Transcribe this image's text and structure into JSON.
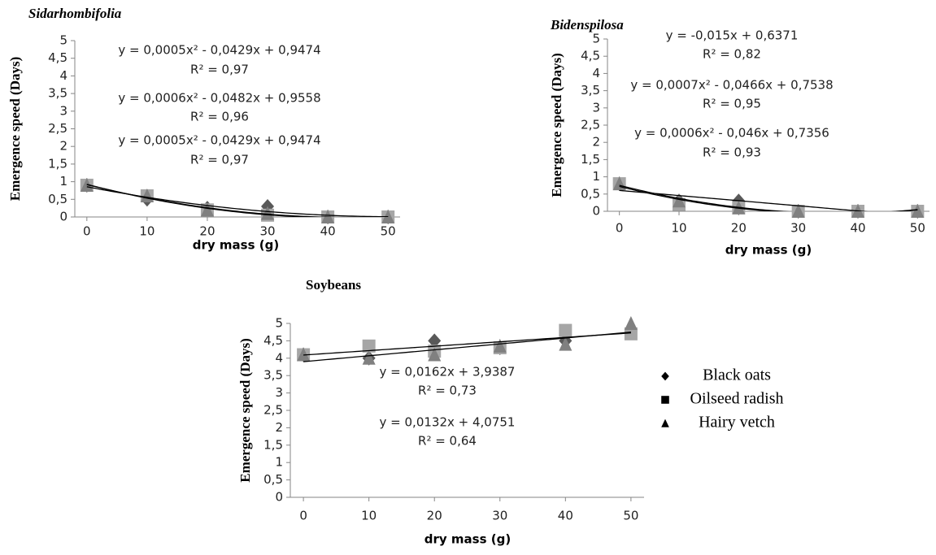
{
  "chart_data": [
    {
      "type": "scatter",
      "title": "Sidarhombifolia",
      "ylabel": "Emergence speed (Days)",
      "xlabel": "dry  mass (g)",
      "x": [
        0,
        10,
        20,
        30,
        40,
        50
      ],
      "series": [
        {
          "marker": "diamond",
          "color": "#595959",
          "trendline": "quadratic",
          "values": [
            0.9,
            0.5,
            0.25,
            0.3,
            0,
            0
          ]
        },
        {
          "marker": "square",
          "color": "#a6a6a6",
          "trendline": "quadratic",
          "values": [
            0.9,
            0.6,
            0.2,
            0.05,
            0,
            0
          ]
        },
        {
          "marker": "triangle",
          "color": "#808080",
          "trendline": "quadratic",
          "values": [
            0.9,
            0.6,
            0.2,
            0.1,
            0,
            0
          ]
        }
      ],
      "xlim": [
        -2,
        52
      ],
      "xticks": [
        0,
        10,
        20,
        30,
        40,
        50
      ],
      "ylim": [
        0,
        5
      ],
      "yticks": [
        0,
        {
          "value": 0.5,
          "label": "0,5"
        },
        1,
        {
          "value": 1.5,
          "label": "1,5"
        },
        2,
        {
          "value": 2.5,
          "label": "2,5"
        },
        3,
        {
          "value": 3.5,
          "label": "3,5"
        },
        4,
        {
          "value": 4.5,
          "label": "4,5"
        },
        5
      ],
      "annotations": [
        "y = 0,0005x² - 0,0429x + 0,9474",
        "R² = 0,97",
        "y = 0,0006x² - 0,0482x + 0,9558",
        "R² = 0,96",
        "y = 0,0005x² - 0,0429x + 0,9474",
        "R² = 0,97"
      ]
    },
    {
      "type": "scatter",
      "title": "Bidenspilosa",
      "ylabel": "Emergence speed (Days)",
      "xlabel": "dry mass (g)",
      "x": [
        0,
        10,
        20,
        30,
        40,
        50
      ],
      "series": [
        {
          "marker": "diamond",
          "color": "#595959",
          "trendline": "linear",
          "values": [
            0.8,
            0.3,
            0.3,
            0,
            0,
            0
          ]
        },
        {
          "marker": "square",
          "color": "#a6a6a6",
          "trendline": "quadratic",
          "values": [
            0.8,
            0.2,
            0.1,
            0,
            0,
            0
          ]
        },
        {
          "marker": "triangle",
          "color": "#808080",
          "trendline": "quadratic",
          "values": [
            0.8,
            0.3,
            0.1,
            0,
            0,
            0
          ]
        }
      ],
      "xlim": [
        -2,
        52
      ],
      "xticks": [
        0,
        10,
        20,
        30,
        40,
        50
      ],
      "ylim": [
        0,
        5
      ],
      "yticks": [
        0,
        {
          "value": 0.5,
          "label": "0,5"
        },
        1,
        {
          "value": 1.5,
          "label": "1,5"
        },
        2,
        {
          "value": 2.5,
          "label": "2,5"
        },
        3,
        {
          "value": 3.5,
          "label": "3,5"
        },
        4,
        {
          "value": 4.5,
          "label": "4,5"
        },
        5
      ],
      "annotations": [
        "y = -0,015x + 0,6371",
        "R² = 0,82",
        "y = 0,0007x² - 0,0466x + 0,7538",
        "R² = 0,95",
        "y = 0,0006x² - 0,046x + 0,7356",
        "R² = 0,93"
      ]
    },
    {
      "type": "scatter",
      "title": "Soybeans",
      "ylabel": "Emergence speed (Days)",
      "xlabel": "dry mass (g)",
      "x": [
        0,
        10,
        20,
        30,
        40,
        50
      ],
      "series": [
        {
          "name": "Black oats",
          "marker": "diamond",
          "color": "#595959",
          "values": [
            4.1,
            4.0,
            4.5,
            4.3,
            4.5,
            4.8
          ]
        },
        {
          "name": "Oilseed radish",
          "marker": "square",
          "color": "#a6a6a6",
          "trendline": "linear",
          "values": [
            4.1,
            4.35,
            4.2,
            4.3,
            4.8,
            4.7
          ]
        },
        {
          "name": "Hairy vetch",
          "marker": "triangle",
          "color": "#808080",
          "trendline": "linear",
          "values": [
            4.1,
            4.0,
            4.1,
            4.35,
            4.4,
            5.0
          ]
        }
      ],
      "xlim": [
        -2,
        52
      ],
      "xticks": [
        0,
        10,
        20,
        30,
        40,
        50
      ],
      "ylim": [
        0,
        5
      ],
      "yticks": [
        0,
        {
          "value": 0.5,
          "label": "0,5"
        },
        1,
        {
          "value": 1.5,
          "label": "1,5"
        },
        2,
        {
          "value": 2.5,
          "label": "2,5"
        },
        3,
        {
          "value": 3.5,
          "label": "3,5"
        },
        4,
        {
          "value": 4.5,
          "label": "4,5"
        },
        5
      ],
      "annotations": [
        "y = 0,0162x + 3,9387",
        "R² = 0,73",
        "y = 0,0132x + 4,0751",
        "R² = 0,64"
      ]
    }
  ]
}
